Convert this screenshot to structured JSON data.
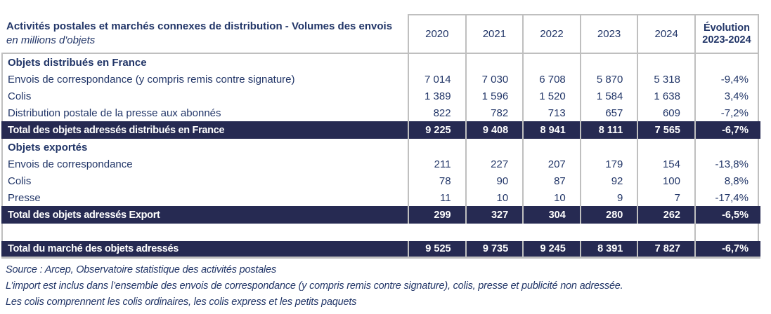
{
  "header": {
    "title": "Activités postales et marchés connexes de distribution  - Volumes des envois",
    "subtitle": "en millions d'objets",
    "years": [
      "2020",
      "2021",
      "2022",
      "2023",
      "2024"
    ],
    "evolution_line1": "Évolution",
    "evolution_line2": "2023-2024"
  },
  "chart_data": {
    "type": "table",
    "title": "Activités postales et marchés connexes de distribution - Volumes des envois (en millions d'objets)",
    "columns": [
      "2020",
      "2021",
      "2022",
      "2023",
      "2024",
      "Évolution 2023-2024"
    ],
    "rows": [
      {
        "type": "section",
        "label": "Objets distribués en France",
        "values": [
          "",
          "",
          "",
          "",
          ""
        ],
        "evolution": ""
      },
      {
        "type": "data",
        "label": "Envois de correspondance (y compris remis contre signature)",
        "values": [
          "7 014",
          "7 030",
          "6 708",
          "5 870",
          "5 318"
        ],
        "evolution": "-9,4%"
      },
      {
        "type": "data",
        "label": "Colis",
        "values": [
          "1 389",
          "1 596",
          "1 520",
          "1 584",
          "1 638"
        ],
        "evolution": "3,4%"
      },
      {
        "type": "data",
        "label": "Distribution postale de la presse aux abonnés",
        "values": [
          "822",
          "782",
          "713",
          "657",
          "609"
        ],
        "evolution": "-7,2%"
      },
      {
        "type": "total",
        "label": "Total des objets adressés distribués en France",
        "values": [
          "9 225",
          "9 408",
          "8 941",
          "8 111",
          "7 565"
        ],
        "evolution": "-6,7%"
      },
      {
        "type": "section",
        "label": "Objets exportés",
        "values": [
          "",
          "",
          "",
          "",
          ""
        ],
        "evolution": ""
      },
      {
        "type": "data",
        "label": "Envois de correspondance",
        "values": [
          "211",
          "227",
          "207",
          "179",
          "154"
        ],
        "evolution": "-13,8%"
      },
      {
        "type": "data",
        "label": "Colis",
        "values": [
          "78",
          "90",
          "87",
          "92",
          "100"
        ],
        "evolution": "8,8%"
      },
      {
        "type": "data",
        "label": "Presse",
        "values": [
          "11",
          "10",
          "10",
          "9",
          "7"
        ],
        "evolution": "-17,4%"
      },
      {
        "type": "total",
        "label": "Total des objets adressés Export",
        "values": [
          "299",
          "327",
          "304",
          "280",
          "262"
        ],
        "evolution": "-6,5%"
      },
      {
        "type": "spacer",
        "label": "",
        "values": [
          "",
          "",
          "",
          "",
          ""
        ],
        "evolution": ""
      },
      {
        "type": "total last",
        "label": "Total du marché des objets adressés",
        "values": [
          "9 525",
          "9 735",
          "9 245",
          "8 391",
          "7 827"
        ],
        "evolution": "-6,7%"
      }
    ]
  },
  "footnotes": [
    "Source : Arcep, Observatoire statistique des activités postales",
    "L’import est inclus dans l’ensemble des envois de correspondance (y compris remis contre signature), colis, presse et publicité non adressée.",
    "Les colis comprennent les colis ordinaires, les colis express et les petits paquets"
  ],
  "colors": {
    "text_navy": "#223668",
    "total_row_bg": "#262a52",
    "total_row_text": "#ffffff",
    "border_gray": "#bfbfbf"
  }
}
